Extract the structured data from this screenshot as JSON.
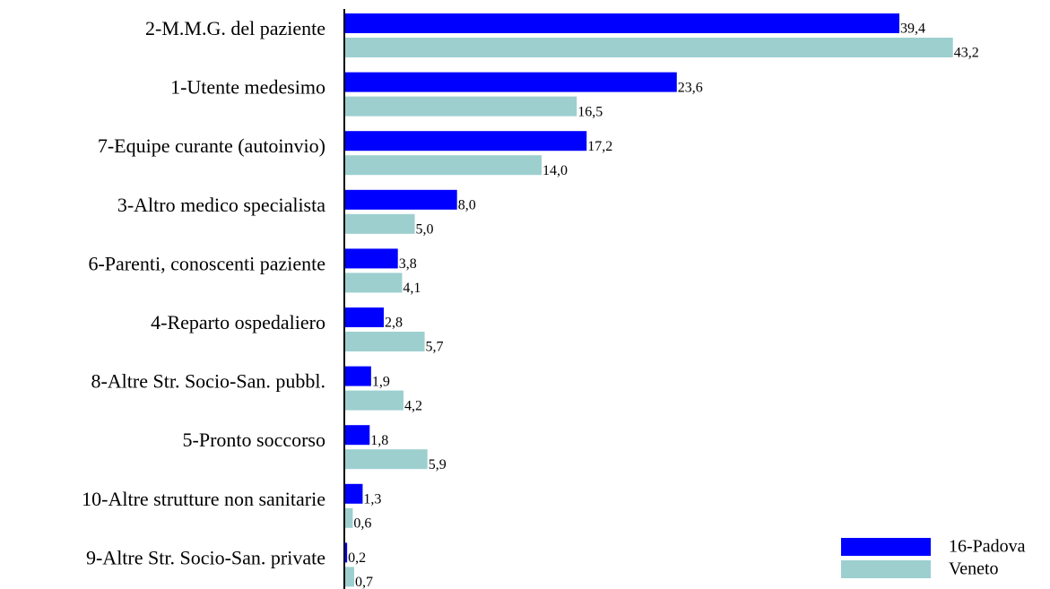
{
  "chart_data": {
    "type": "bar",
    "orientation": "horizontal",
    "categories": [
      "2-M.M.G. del paziente",
      "1-Utente medesimo",
      "7-Equipe curante (autoinvio)",
      "3-Altro medico specialista",
      "6-Parenti, conoscenti paziente",
      "4-Reparto ospedaliero",
      "8-Altre Str. Socio-San. pubbl.",
      "5-Pronto soccorso",
      "10-Altre strutture non sanitarie",
      "9-Altre Str. Socio-San. private"
    ],
    "series": [
      {
        "name": "16-Padova",
        "color": "#0000ff",
        "values": [
          39.4,
          23.6,
          17.2,
          8.0,
          3.8,
          2.8,
          1.9,
          1.8,
          1.3,
          0.2
        ],
        "value_labels": [
          "39,4",
          "23,6",
          "17,2",
          "8,0",
          "3,8",
          "2,8",
          "1,9",
          "1,8",
          "1,3",
          "0,2"
        ]
      },
      {
        "name": "Veneto",
        "color": "#9dcfcf",
        "values": [
          43.2,
          16.5,
          14.0,
          5.0,
          4.1,
          5.7,
          4.2,
          5.9,
          0.6,
          0.7
        ],
        "value_labels": [
          "43,2",
          "16,5",
          "14,0",
          "5,0",
          "4,1",
          "5,7",
          "4,2",
          "5,9",
          "0,6",
          "0,7"
        ]
      }
    ],
    "xlim": [
      0,
      45
    ],
    "legend": "bottom-right"
  }
}
